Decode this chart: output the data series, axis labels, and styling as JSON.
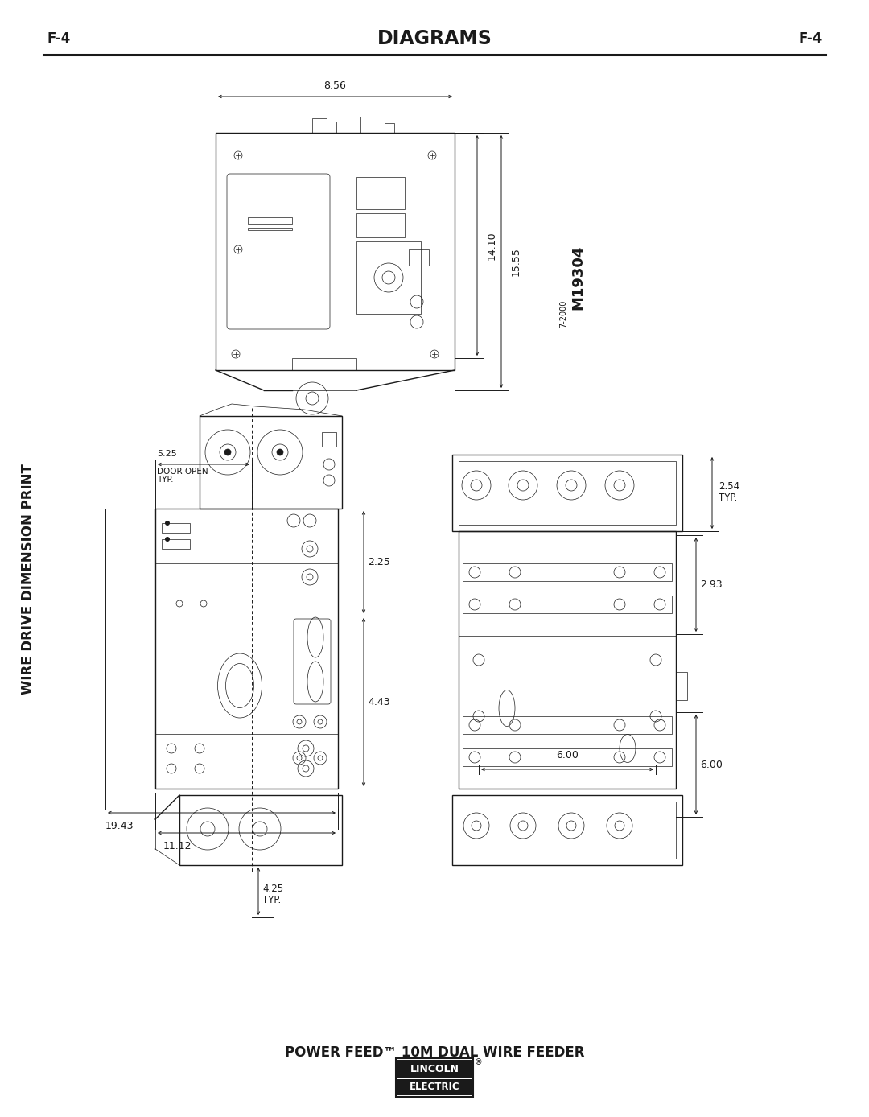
{
  "title": "DIAGRAMS",
  "page_label": "F-4",
  "bg_color": "#ffffff",
  "text_color": "#1a1a1a",
  "sidebar_text": "WIRE DRIVE DIMENSION PRINT",
  "bottom_title": "POWER FEED™ 10M DUAL WIRE FEEDER",
  "part_number": "M19304",
  "date_code": "7-2000",
  "dim_856": "8.56",
  "dim_1410": "14.10",
  "dim_1555": "15.55",
  "dim_1943": "19.43",
  "dim_1112": "11.12",
  "dim_525": "5.25",
  "dim_door": "DOOR OPEN\nTYP.",
  "dim_225": "2.25",
  "dim_443": "4.43",
  "dim_254": "2.54",
  "dim_typ": "TYP.",
  "dim_293": "2.93",
  "dim_600": "6.00",
  "dim_425": "4.25",
  "dim_425typ": "4.25  TYP."
}
